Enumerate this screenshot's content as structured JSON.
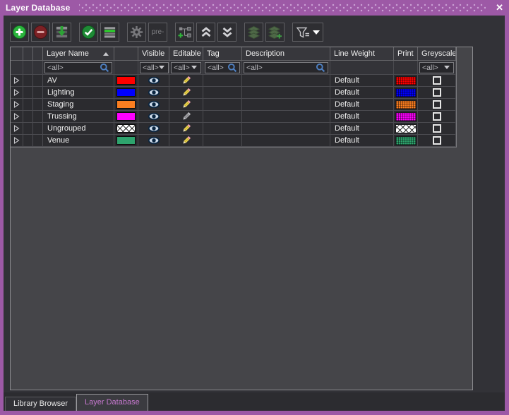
{
  "window": {
    "title": "Layer Database",
    "close_glyph": "✕"
  },
  "toolbar": {
    "buttons": [
      {
        "name": "add-layer-button",
        "icon": "plus-circle-icon",
        "enabled": true,
        "gap_before": false
      },
      {
        "name": "remove-layer-button",
        "icon": "minus-circle-icon",
        "enabled": false,
        "gap_before": false
      },
      {
        "name": "import-layers-button",
        "icon": "import-rows-icon",
        "enabled": true,
        "gap_before": false
      },
      {
        "name": "apply-button",
        "icon": "check-circle-icon",
        "enabled": true,
        "gap_before": true
      },
      {
        "name": "highlight-rows-button",
        "icon": "list-highlight-icon",
        "enabled": true,
        "gap_before": false
      },
      {
        "name": "settings-button",
        "icon": "gear-icon",
        "enabled": false,
        "gap_before": true
      },
      {
        "name": "prefix-button",
        "icon": "text",
        "label": "pre-",
        "enabled": false,
        "gap_before": false
      },
      {
        "name": "add-group-button",
        "icon": "tree-plus-icon",
        "enabled": true,
        "gap_before": true
      },
      {
        "name": "collapse-all-button",
        "icon": "chevrons-up-icon",
        "enabled": true,
        "gap_before": false
      },
      {
        "name": "expand-all-button",
        "icon": "chevrons-down-icon",
        "enabled": true,
        "gap_before": false
      },
      {
        "name": "merge-layers-button",
        "icon": "layer-stack-icon",
        "enabled": false,
        "gap_before": true
      },
      {
        "name": "add-to-layer-button",
        "icon": "layer-stack-plus-icon",
        "enabled": false,
        "gap_before": false
      },
      {
        "name": "filter-button",
        "icon": "funnel-caret-icon",
        "enabled": true,
        "gap_before": true,
        "wide": true
      }
    ]
  },
  "table": {
    "columns": [
      {
        "key": "expander",
        "label": ""
      },
      {
        "key": "spacer1",
        "label": ""
      },
      {
        "key": "spacer2",
        "label": ""
      },
      {
        "key": "layer_name",
        "label": "Layer Name",
        "sort": "asc"
      },
      {
        "key": "color",
        "label": ""
      },
      {
        "key": "visible",
        "label": "Visible"
      },
      {
        "key": "editable",
        "label": "Editable"
      },
      {
        "key": "tag",
        "label": "Tag"
      },
      {
        "key": "description",
        "label": "Description"
      },
      {
        "key": "line_weight",
        "label": "Line Weight"
      },
      {
        "key": "print",
        "label": "Print"
      },
      {
        "key": "greyscale",
        "label": "Greyscale"
      }
    ],
    "filter_row": [
      {
        "col": "layer_name",
        "value": "<all>",
        "type": "search"
      },
      {
        "col": "visible",
        "value": "<all>",
        "type": "dropdown"
      },
      {
        "col": "editable",
        "value": "<all>",
        "type": "dropdown"
      },
      {
        "col": "tag",
        "value": "<all>",
        "type": "search"
      },
      {
        "col": "description",
        "value": "<all>",
        "type": "search"
      },
      {
        "col": "greyscale",
        "value": "<all>",
        "type": "dropdown"
      }
    ],
    "rows": [
      {
        "layer_name": "AV",
        "color": "#ff0000",
        "fill": "solid",
        "visible": true,
        "pencil": "yellow",
        "tag": "",
        "description": "",
        "line_weight": "Default",
        "print_color": "#ff0000",
        "print_fill": "grid",
        "greyscale": false
      },
      {
        "layer_name": "Lighting",
        "color": "#0000ff",
        "fill": "solid",
        "visible": true,
        "pencil": "yellow",
        "tag": "",
        "description": "",
        "line_weight": "Default",
        "print_color": "#0000ff",
        "print_fill": "grid",
        "greyscale": false
      },
      {
        "layer_name": "Staging",
        "color": "#fb7e20",
        "fill": "solid",
        "visible": true,
        "pencil": "yellow",
        "tag": "",
        "description": "",
        "line_weight": "Default",
        "print_color": "#fb7e20",
        "print_fill": "grid",
        "greyscale": false
      },
      {
        "layer_name": "Trussing",
        "color": "#ff00ff",
        "fill": "solid",
        "visible": true,
        "pencil": "gray",
        "tag": "",
        "description": "",
        "line_weight": "Default",
        "print_color": "#ff00ff",
        "print_fill": "grid",
        "greyscale": false
      },
      {
        "layer_name": "Ungrouped",
        "color": "#ffffff",
        "fill": "crosshatch",
        "visible": true,
        "pencil": "yellow",
        "tag": "",
        "description": "",
        "line_weight": "Default",
        "print_color": "#ffffff",
        "print_fill": "crosshatch",
        "greyscale": false
      },
      {
        "layer_name": "Venue",
        "color": "#2ea36d",
        "fill": "solid",
        "visible": true,
        "pencil": "yellow",
        "tag": "",
        "description": "",
        "line_weight": "Default",
        "print_color": "#2ea36d",
        "print_fill": "grid",
        "greyscale": false
      }
    ]
  },
  "tabs": [
    {
      "label": "Library Browser",
      "active": false
    },
    {
      "label": "Layer Database",
      "active": true
    }
  ],
  "colors": {
    "chrome_purple": "#9d59a6",
    "titlebar_dots": "#c9a0d4",
    "content_bg": "#323237",
    "panel_bg": "#454549",
    "cell_bg": "#2b2b2f",
    "header_bg": "#37373c",
    "accent_green": "#2ab43c",
    "disabled_red": "#7c2125",
    "search_blue": "#4e7fc0",
    "active_tab_text": "#c678ce"
  }
}
